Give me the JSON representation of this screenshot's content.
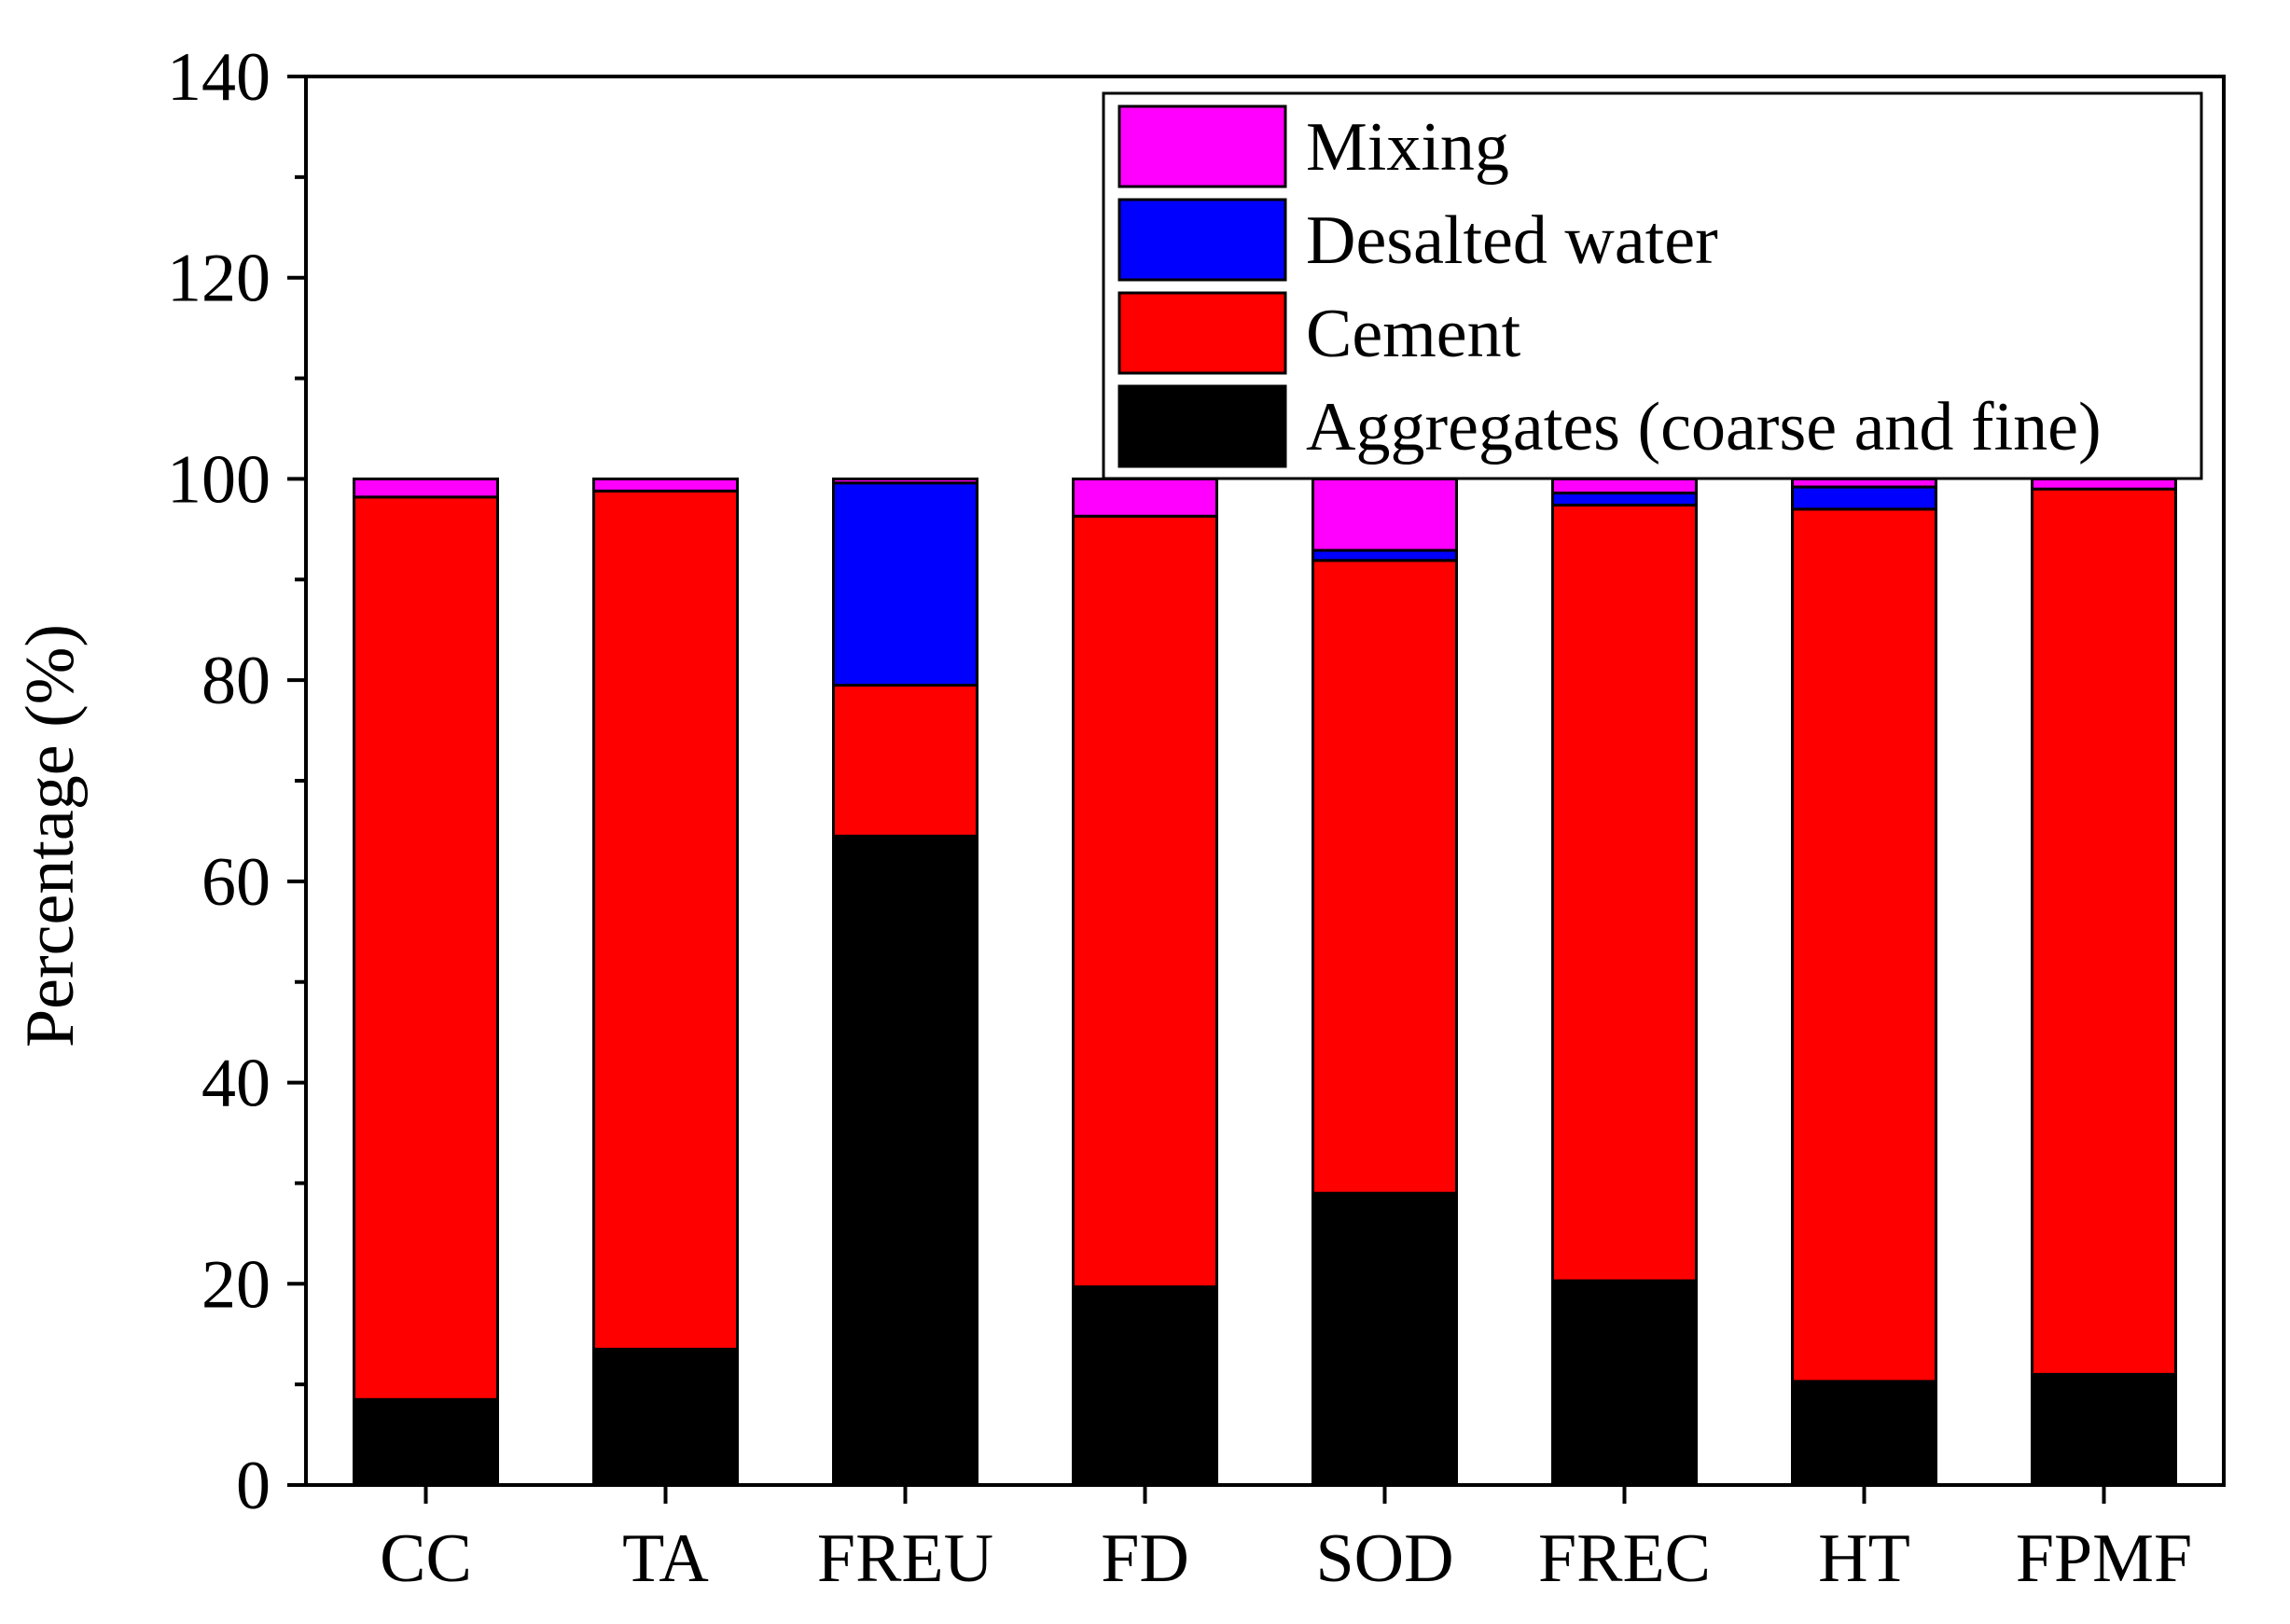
{
  "chart_data": {
    "type": "bar",
    "stacked": true,
    "title": "",
    "xlabel": "",
    "ylabel": "Percentage (%)",
    "ylim": [
      0,
      140
    ],
    "yticks": [
      0,
      20,
      40,
      60,
      80,
      100,
      120,
      140
    ],
    "grid": false,
    "legend_position": "top-right",
    "categories": [
      "CC",
      "TA",
      "FREU",
      "FD",
      "SOD",
      "FREC",
      "HT",
      "FPMF"
    ],
    "series": [
      {
        "name": "Aggregates (coarse and fine)",
        "color": "#000000",
        "values": [
          8.5,
          13.5,
          64.5,
          19.7,
          29.0,
          20.3,
          10.3,
          11.0
        ]
      },
      {
        "name": "Cement",
        "color": "#ff0000",
        "values": [
          89.7,
          85.3,
          15.0,
          76.6,
          62.9,
          77.1,
          86.7,
          88.0
        ]
      },
      {
        "name": "Desalted water",
        "color": "#0000ff",
        "values": [
          0.0,
          0.0,
          20.1,
          0.0,
          1.0,
          1.2,
          2.2,
          0.0
        ]
      },
      {
        "name": "Mixing",
        "color": "#ff00ff",
        "values": [
          1.8,
          1.2,
          0.4,
          3.7,
          7.1,
          1.4,
          0.8,
          1.0
        ]
      }
    ],
    "legend_order": [
      "Mixing",
      "Desalted water",
      "Cement",
      "Aggregates (coarse and fine)"
    ]
  }
}
